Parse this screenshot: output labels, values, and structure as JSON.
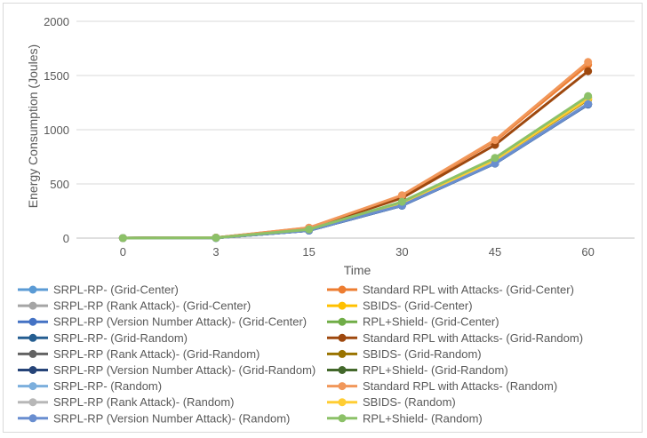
{
  "chart_data": {
    "type": "line",
    "title": "",
    "xlabel": "Time",
    "ylabel": "Energy Consumption (Joules)",
    "categories": [
      "0",
      "3",
      "15",
      "30",
      "45",
      "60"
    ],
    "ylim": [
      0,
      2000
    ],
    "yticks": [
      "0",
      "500",
      "1000",
      "1500",
      "2000"
    ],
    "grid": "horizontal",
    "legend_position": "bottom",
    "series": [
      {
        "name": "SRPL-RP- (Grid-Center)",
        "color": "#5b9bd5",
        "values": [
          0,
          2,
          70,
          300,
          690,
          1235
        ]
      },
      {
        "name": "Standard RPL with Attacks- (Grid-Center)",
        "color": "#ed7d31",
        "values": [
          0,
          4,
          95,
          390,
          895,
          1600
        ]
      },
      {
        "name": "SRPL-RP (Rank Attack)- (Grid-Center)",
        "color": "#a5a5a5",
        "values": [
          0,
          2,
          72,
          305,
          695,
          1240
        ]
      },
      {
        "name": "SBIDS- (Grid-Center)",
        "color": "#ffc000",
        "values": [
          0,
          3,
          75,
          320,
          720,
          1280
        ]
      },
      {
        "name": "SRPL-RP (Version Number Attack)- (Grid-Center)",
        "color": "#4472c4",
        "values": [
          0,
          2,
          71,
          302,
          692,
          1238
        ]
      },
      {
        "name": "RPL+Shield- (Grid-Center)",
        "color": "#70ad47",
        "values": [
          0,
          3,
          80,
          330,
          735,
          1300
        ]
      },
      {
        "name": "SRPL-RP- (Grid-Random)",
        "color": "#255e91",
        "values": [
          0,
          2,
          70,
          300,
          688,
          1232
        ]
      },
      {
        "name": "Standard RPL with Attacks- (Grid-Random)",
        "color": "#9e480e",
        "values": [
          0,
          4,
          90,
          370,
          860,
          1540
        ]
      },
      {
        "name": "SRPL-RP (Rank Attack)- (Grid-Random)",
        "color": "#636363",
        "values": [
          0,
          2,
          71,
          303,
          693,
          1236
        ]
      },
      {
        "name": "SBIDS- (Grid-Random)",
        "color": "#997300",
        "values": [
          0,
          3,
          74,
          318,
          718,
          1278
        ]
      },
      {
        "name": "SRPL-RP (Version Number Attack)- (Grid-Random)",
        "color": "#264478",
        "values": [
          0,
          2,
          70,
          301,
          690,
          1234
        ]
      },
      {
        "name": "RPL+Shield- (Grid-Random)",
        "color": "#43682b",
        "values": [
          0,
          3,
          79,
          328,
          732,
          1296
        ]
      },
      {
        "name": "SRPL-RP- (Random)",
        "color": "#7cafdd",
        "values": [
          0,
          2,
          72,
          306,
          696,
          1242
        ]
      },
      {
        "name": "Standard RPL with Attacks- (Random)",
        "color": "#f1975a",
        "values": [
          0,
          4,
          96,
          395,
          905,
          1625
        ]
      },
      {
        "name": "SRPL-RP (Rank Attack)- (Random)",
        "color": "#b7b7b7",
        "values": [
          0,
          2,
          72,
          304,
          694,
          1239
        ]
      },
      {
        "name": "SBIDS- (Random)",
        "color": "#ffcd33",
        "values": [
          0,
          3,
          76,
          322,
          722,
          1285
        ]
      },
      {
        "name": "SRPL-RP (Version Number Attack)- (Random)",
        "color": "#698ed0",
        "values": [
          0,
          2,
          71,
          302,
          690,
          1236
        ]
      },
      {
        "name": "RPL+Shield- (Random)",
        "color": "#8cc168",
        "values": [
          0,
          3,
          80,
          335,
          740,
          1310
        ]
      }
    ]
  }
}
